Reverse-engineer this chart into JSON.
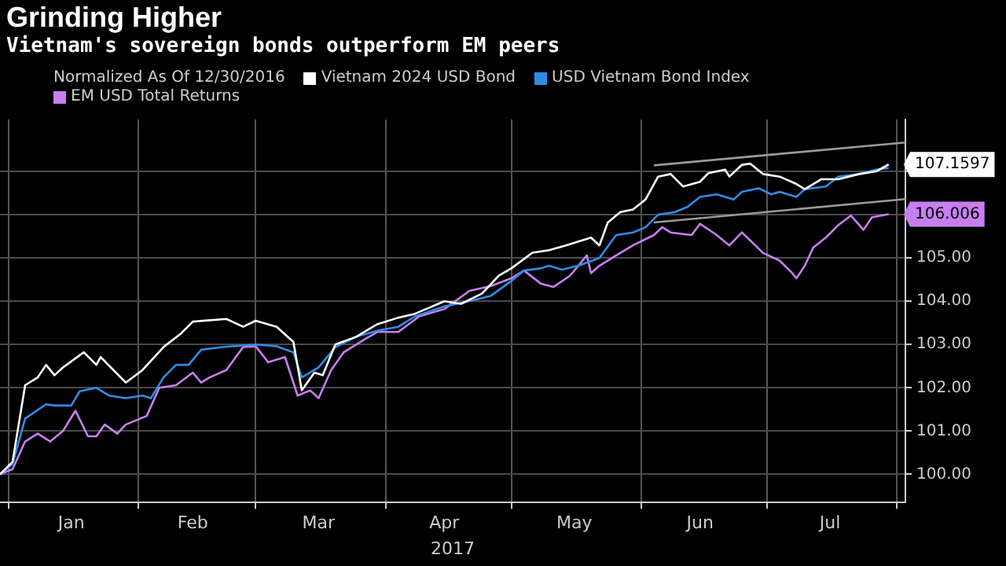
{
  "chart_data": {
    "type": "line",
    "title": "Grinding Higher",
    "subtitle": "Vietnam's sovereign bonds outperform EM peers",
    "legend_title": "Normalized As Of 12/30/2016",
    "xlabel": "2017",
    "xlim": [
      "2016-12-30",
      "2017-08-03"
    ],
    "xticks": [
      {
        "value": "2017-01-01",
        "label": null
      },
      {
        "value": "2017-01-16",
        "label": "Jan"
      },
      {
        "value": "2017-02-01",
        "label": null
      },
      {
        "value": "2017-02-14",
        "label": "Feb"
      },
      {
        "value": "2017-03-01",
        "label": null
      },
      {
        "value": "2017-03-16",
        "label": "Mar"
      },
      {
        "value": "2017-04-01",
        "label": null
      },
      {
        "value": "2017-04-15",
        "label": "Apr"
      },
      {
        "value": "2017-05-01",
        "label": null
      },
      {
        "value": "2017-05-16",
        "label": "May"
      },
      {
        "value": "2017-06-01",
        "label": null
      },
      {
        "value": "2017-06-15",
        "label": "Jun"
      },
      {
        "value": "2017-07-01",
        "label": null
      },
      {
        "value": "2017-07-16",
        "label": "Jul"
      },
      {
        "value": "2017-08-01",
        "label": null
      }
    ],
    "ylim": [
      99.35,
      108.2
    ],
    "yticks": [
      {
        "value": 100,
        "label": "100.00"
      },
      {
        "value": 101,
        "label": "101.00"
      },
      {
        "value": 102,
        "label": "102.00"
      },
      {
        "value": 103,
        "label": "103.00"
      },
      {
        "value": 104,
        "label": "104.00"
      },
      {
        "value": 105,
        "label": "105.00"
      },
      {
        "value": 106,
        "label": null
      },
      {
        "value": 107,
        "label": null
      }
    ],
    "grid": true,
    "legend": "top",
    "marker": "none",
    "series": [
      {
        "name": "Vietnam 2024 USD Bond",
        "color": "#ffffff",
        "x": [
          "2016-12-30",
          "2017-01-02",
          "2017-01-05",
          "2017-01-08",
          "2017-01-10",
          "2017-01-12",
          "2017-01-14",
          "2017-01-19",
          "2017-01-22",
          "2017-01-23",
          "2017-01-29",
          "2017-02-02",
          "2017-02-07",
          "2017-02-11",
          "2017-02-14",
          "2017-02-22",
          "2017-02-26",
          "2017-03-01",
          "2017-03-06",
          "2017-03-10",
          "2017-03-12",
          "2017-03-15",
          "2017-03-17",
          "2017-03-20",
          "2017-03-25",
          "2017-03-30",
          "2017-04-04",
          "2017-04-08",
          "2017-04-15",
          "2017-04-19",
          "2017-04-24",
          "2017-04-28",
          "2017-05-01",
          "2017-05-06",
          "2017-05-10",
          "2017-05-14",
          "2017-05-20",
          "2017-05-22",
          "2017-05-24",
          "2017-05-27",
          "2017-05-30",
          "2017-06-02",
          "2017-06-05",
          "2017-06-08",
          "2017-06-11",
          "2017-06-15",
          "2017-06-17",
          "2017-06-21",
          "2017-06-22",
          "2017-06-25",
          "2017-06-27",
          "2017-06-30",
          "2017-07-04",
          "2017-07-08",
          "2017-07-10",
          "2017-07-14",
          "2017-07-18",
          "2017-07-23",
          "2017-07-27",
          "2017-07-30"
        ],
        "values": [
          100.0,
          100.29,
          102.06,
          102.24,
          102.53,
          102.29,
          102.47,
          102.82,
          102.53,
          102.71,
          102.12,
          102.41,
          102.94,
          103.24,
          103.53,
          103.59,
          103.41,
          103.55,
          103.41,
          103.06,
          101.94,
          102.35,
          102.29,
          103.0,
          103.18,
          103.47,
          103.62,
          103.71,
          104.0,
          103.94,
          104.18,
          104.59,
          104.76,
          105.12,
          105.18,
          105.29,
          105.47,
          105.29,
          105.82,
          106.06,
          106.12,
          106.35,
          106.88,
          106.94,
          106.65,
          106.76,
          106.96,
          107.04,
          106.88,
          107.15,
          107.18,
          106.94,
          106.88,
          106.71,
          106.59,
          106.82,
          106.82,
          106.94,
          107.0,
          107.16
        ]
      },
      {
        "name": "USD Vietnam Bond Index",
        "color": "#2f8ce8",
        "x": [
          "2016-12-30",
          "2017-01-02",
          "2017-01-05",
          "2017-01-10",
          "2017-01-12",
          "2017-01-16",
          "2017-01-18",
          "2017-01-22",
          "2017-01-25",
          "2017-01-29",
          "2017-02-02",
          "2017-02-04",
          "2017-02-07",
          "2017-02-10",
          "2017-02-13",
          "2017-02-16",
          "2017-02-21",
          "2017-03-01",
          "2017-03-06",
          "2017-03-10",
          "2017-03-12",
          "2017-03-16",
          "2017-03-20",
          "2017-03-25",
          "2017-03-30",
          "2017-04-04",
          "2017-04-08",
          "2017-04-15",
          "2017-04-20",
          "2017-04-26",
          "2017-05-01",
          "2017-05-04",
          "2017-05-08",
          "2017-05-10",
          "2017-05-13",
          "2017-05-17",
          "2017-05-22",
          "2017-05-26",
          "2017-05-30",
          "2017-06-02",
          "2017-06-05",
          "2017-06-09",
          "2017-06-12",
          "2017-06-15",
          "2017-06-19",
          "2017-06-23",
          "2017-06-25",
          "2017-06-29",
          "2017-07-02",
          "2017-07-04",
          "2017-07-08",
          "2017-07-10",
          "2017-07-15",
          "2017-07-18",
          "2017-07-23",
          "2017-07-27",
          "2017-07-30"
        ],
        "values": [
          100,
          100.24,
          101.29,
          101.62,
          101.59,
          101.59,
          101.92,
          102.0,
          101.82,
          101.76,
          101.82,
          101.76,
          102.24,
          102.53,
          102.53,
          102.88,
          102.94,
          103.0,
          102.96,
          102.82,
          102.24,
          102.47,
          102.94,
          103.18,
          103.32,
          103.41,
          103.65,
          103.88,
          103.98,
          104.12,
          104.47,
          104.71,
          104.76,
          104.82,
          104.73,
          104.82,
          105.0,
          105.53,
          105.59,
          105.71,
          106.0,
          106.06,
          106.18,
          106.41,
          106.47,
          106.35,
          106.53,
          106.61,
          106.47,
          106.53,
          106.41,
          106.59,
          106.65,
          106.88,
          106.94,
          107.04,
          107.08
        ]
      },
      {
        "name": "EM USD Total Returns",
        "color": "#c77ff0",
        "x": [
          "2016-12-30",
          "2017-01-02",
          "2017-01-05",
          "2017-01-08",
          "2017-01-11",
          "2017-01-14",
          "2017-01-17",
          "2017-01-20",
          "2017-01-22",
          "2017-01-24",
          "2017-01-27",
          "2017-01-29",
          "2017-02-03",
          "2017-02-06",
          "2017-02-10",
          "2017-02-14",
          "2017-02-16",
          "2017-02-18",
          "2017-02-22",
          "2017-02-26",
          "2017-03-01",
          "2017-03-04",
          "2017-03-08",
          "2017-03-11",
          "2017-03-14",
          "2017-03-16",
          "2017-03-19",
          "2017-03-22",
          "2017-03-27",
          "2017-03-30",
          "2017-04-04",
          "2017-04-09",
          "2017-04-15",
          "2017-04-21",
          "2017-04-26",
          "2017-05-01",
          "2017-05-04",
          "2017-05-08",
          "2017-05-11",
          "2017-05-15",
          "2017-05-19",
          "2017-05-20",
          "2017-05-22",
          "2017-05-26",
          "2017-05-30",
          "2017-06-04",
          "2017-06-06",
          "2017-06-08",
          "2017-06-13",
          "2017-06-15",
          "2017-06-19",
          "2017-06-22",
          "2017-06-25",
          "2017-06-30",
          "2017-07-04",
          "2017-07-07",
          "2017-07-08",
          "2017-07-10",
          "2017-07-12",
          "2017-07-15",
          "2017-07-18",
          "2017-07-21",
          "2017-07-24",
          "2017-07-26",
          "2017-07-30"
        ],
        "values": [
          100,
          100.12,
          100.76,
          100.94,
          100.76,
          101.0,
          101.47,
          100.88,
          100.88,
          101.15,
          100.94,
          101.15,
          101.35,
          102.0,
          102.06,
          102.35,
          102.12,
          102.24,
          102.41,
          102.94,
          102.96,
          102.59,
          102.71,
          101.82,
          101.94,
          101.76,
          102.41,
          102.82,
          103.12,
          103.29,
          103.29,
          103.65,
          103.82,
          104.24,
          104.35,
          104.53,
          104.71,
          104.41,
          104.33,
          104.59,
          105.06,
          104.65,
          104.82,
          105.06,
          105.29,
          105.53,
          105.71,
          105.59,
          105.53,
          105.79,
          105.53,
          105.29,
          105.59,
          105.12,
          104.94,
          104.65,
          104.53,
          104.82,
          105.24,
          105.47,
          105.76,
          105.98,
          105.65,
          105.94,
          106.01
        ]
      },
      {
        "color": "#9a9a9a",
        "x": [
          "2017-06-04",
          "2017-08-03"
        ],
        "values": [
          107.14,
          107.67
        ]
      },
      {
        "color": "#9a9a9a",
        "x": [
          "2017-06-04",
          "2017-08-03"
        ],
        "values": [
          105.82,
          106.36
        ]
      }
    ],
    "annotations": [
      {
        "text": "107.1597",
        "x": "2017-07-30",
        "y": 107.16
      },
      {
        "text": "106.006",
        "x": "2017-07-30",
        "y": 106.01
      }
    ]
  }
}
